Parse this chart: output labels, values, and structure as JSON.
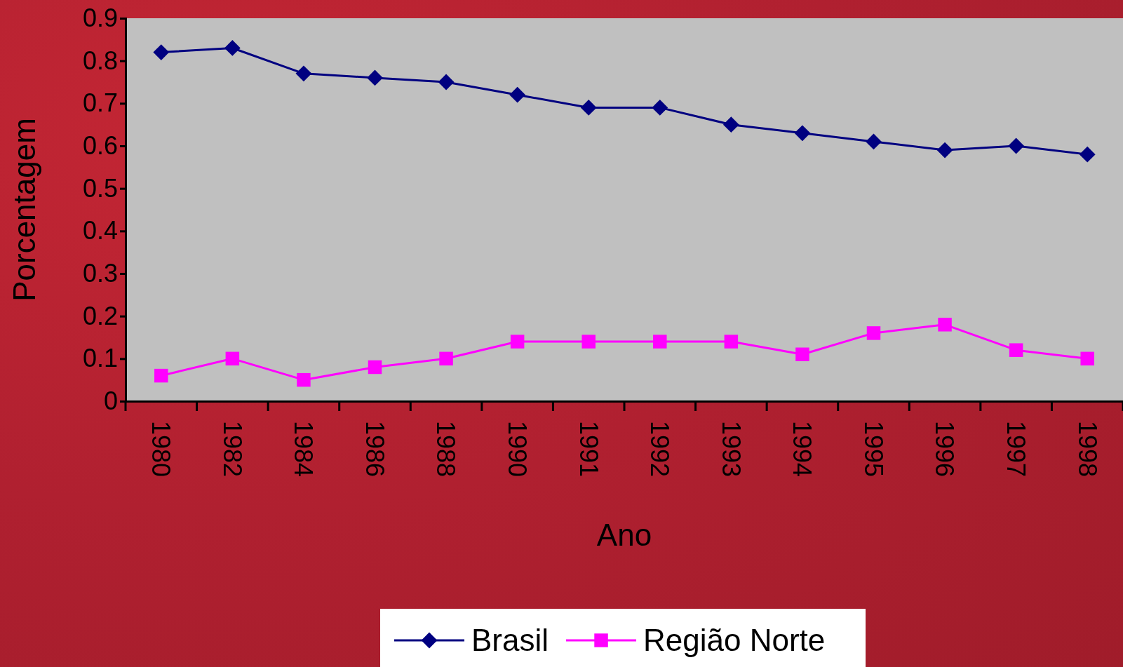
{
  "chart_data": {
    "type": "line",
    "xlabel": "Ano",
    "ylabel": "Porcentagem",
    "categories": [
      "1980",
      "1982",
      "1984",
      "1986",
      "1988",
      "1990",
      "1991",
      "1992",
      "1993",
      "1994",
      "1995",
      "1996",
      "1997",
      "1998"
    ],
    "series": [
      {
        "name": "Brasil",
        "color": "#000080",
        "marker": "diamond",
        "values": [
          0.82,
          0.83,
          0.77,
          0.76,
          0.75,
          0.72,
          0.69,
          0.69,
          0.65,
          0.63,
          0.61,
          0.59,
          0.6,
          0.58
        ]
      },
      {
        "name": "Região Norte",
        "color": "#ff00ff",
        "marker": "square",
        "values": [
          0.06,
          0.1,
          0.05,
          0.08,
          0.1,
          0.14,
          0.14,
          0.14,
          0.14,
          0.11,
          0.16,
          0.18,
          0.12,
          0.1
        ]
      }
    ],
    "ylim": [
      0,
      0.9
    ],
    "yticks": [
      0,
      0.1,
      0.2,
      0.3,
      0.4,
      0.5,
      0.6,
      0.7,
      0.8,
      0.9
    ],
    "grid": false,
    "legend": "bottom"
  }
}
